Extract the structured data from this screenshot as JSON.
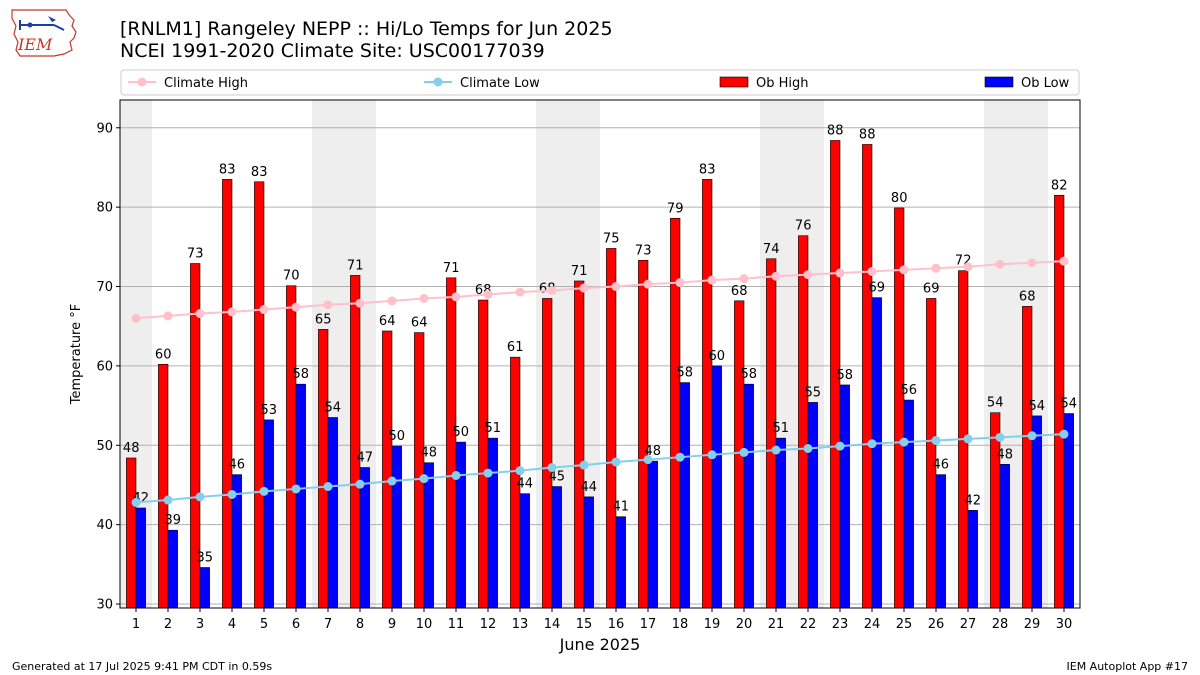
{
  "header": {
    "title": "[RNLM1] Rangeley NEPP :: Hi/Lo Temps for Jun 2025",
    "subtitle": "NCEI 1991-2020 Climate Site: USC00177039",
    "logo_text": "IEM"
  },
  "footer": {
    "generated": "Generated at 17 Jul 2025 9:41 PM CDT in 0.59s",
    "app": "IEM Autoplot App #17"
  },
  "colors": {
    "ob_high": "#ff0000",
    "ob_low": "#0000ff",
    "climate_high": "#ffc0cb",
    "climate_low": "#87ceeb",
    "weekend_band": "#eeeeee",
    "grid": "#b0b0b0"
  },
  "chart_data": {
    "type": "bar",
    "xlabel": "June 2025",
    "ylabel": "Temperature °F",
    "ylim": [
      29.5,
      93.5
    ],
    "yticks": [
      30,
      40,
      50,
      60,
      70,
      80,
      90
    ],
    "grid": true,
    "legend_position": "top",
    "categories": [
      "1",
      "2",
      "3",
      "4",
      "5",
      "6",
      "7",
      "8",
      "9",
      "10",
      "11",
      "12",
      "13",
      "14",
      "15",
      "16",
      "17",
      "18",
      "19",
      "20",
      "21",
      "22",
      "23",
      "24",
      "25",
      "26",
      "27",
      "28",
      "29",
      "30"
    ],
    "shaded_days": [
      1,
      7,
      8,
      14,
      15,
      21,
      22,
      28,
      29
    ],
    "series": [
      {
        "name": "Ob High",
        "kind": "bar",
        "values": [
          48.4,
          60.2,
          72.9,
          83.5,
          83.2,
          70.1,
          64.6,
          71.4,
          64.4,
          64.2,
          71.1,
          68.3,
          61.1,
          68.5,
          70.7,
          74.8,
          73.3,
          78.6,
          83.5,
          68.2,
          73.5,
          76.4,
          88.4,
          87.9,
          79.9,
          68.5,
          72.0,
          54.1,
          67.5,
          81.5
        ],
        "labels": [
          "48",
          "60",
          "73",
          "83",
          "83",
          "70",
          "65",
          "71",
          "64",
          "64",
          "71",
          "68",
          "61",
          "68",
          "71",
          "75",
          "73",
          "79",
          "83",
          "68",
          "74",
          "76",
          "88",
          "88",
          "80",
          "69",
          "72",
          "54",
          "68",
          "82"
        ]
      },
      {
        "name": "Ob Low",
        "kind": "bar",
        "values": [
          42.1,
          39.3,
          34.6,
          46.3,
          53.2,
          57.7,
          53.5,
          47.2,
          49.9,
          47.8,
          50.4,
          50.9,
          43.9,
          44.8,
          43.5,
          41.0,
          48.0,
          57.9,
          60.0,
          57.7,
          50.9,
          55.4,
          57.6,
          68.6,
          55.7,
          46.3,
          41.8,
          47.6,
          53.7,
          54.0
        ],
        "labels": [
          "42",
          "39",
          "35",
          "46",
          "53",
          "58",
          "54",
          "47",
          "50",
          "48",
          "50",
          "51",
          "44",
          "45",
          "44",
          "41",
          "48",
          "58",
          "60",
          "58",
          "51",
          "55",
          "58",
          "69",
          "56",
          "46",
          "42",
          "48",
          "54",
          "54"
        ]
      },
      {
        "name": "Climate High",
        "kind": "line",
        "values": [
          66.0,
          66.3,
          66.6,
          66.8,
          67.1,
          67.4,
          67.7,
          67.9,
          68.2,
          68.5,
          68.7,
          69.0,
          69.3,
          69.5,
          69.8,
          70.0,
          70.3,
          70.5,
          70.8,
          71.0,
          71.3,
          71.5,
          71.7,
          71.9,
          72.1,
          72.3,
          72.5,
          72.8,
          73.0,
          73.2
        ]
      },
      {
        "name": "Climate Low",
        "kind": "line",
        "values": [
          42.8,
          43.1,
          43.5,
          43.8,
          44.2,
          44.5,
          44.8,
          45.1,
          45.5,
          45.8,
          46.2,
          46.5,
          46.8,
          47.2,
          47.5,
          47.9,
          48.2,
          48.5,
          48.8,
          49.1,
          49.4,
          49.6,
          49.9,
          50.2,
          50.4,
          50.6,
          50.8,
          51.0,
          51.2,
          51.4
        ]
      }
    ]
  }
}
